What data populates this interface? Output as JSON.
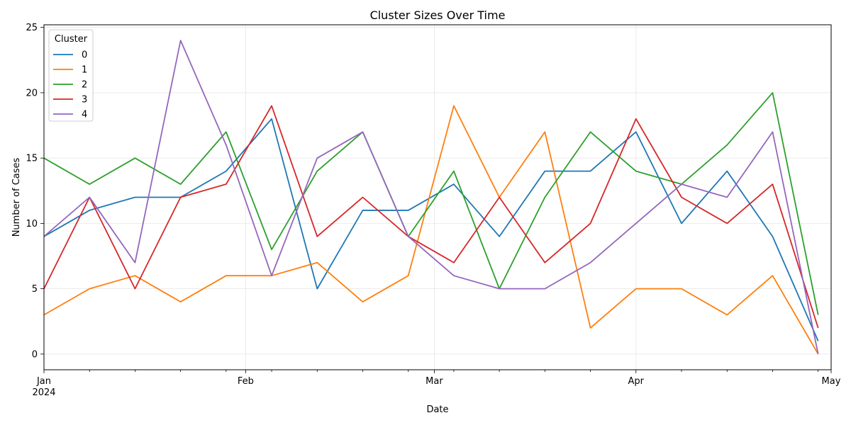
{
  "chart_data": {
    "type": "line",
    "title": "Cluster Sizes Over Time",
    "xlabel": "Date",
    "ylabel": "Number of Cases",
    "x": [
      "2024-01-01",
      "2024-01-08",
      "2024-01-15",
      "2024-01-22",
      "2024-01-29",
      "2024-02-05",
      "2024-02-12",
      "2024-02-19",
      "2024-02-26",
      "2024-03-04",
      "2024-03-11",
      "2024-03-18",
      "2024-03-25",
      "2024-04-01",
      "2024-04-08",
      "2024-04-15",
      "2024-04-22",
      "2024-04-29"
    ],
    "xlim": [
      "2024-01-01",
      "2024-05-01"
    ],
    "x_major_ticks": [
      {
        "date": "2024-01-01",
        "label": "Jan",
        "sublabel": "2024"
      },
      {
        "date": "2024-02-01",
        "label": "Feb",
        "sublabel": ""
      },
      {
        "date": "2024-03-01",
        "label": "Mar",
        "sublabel": ""
      },
      {
        "date": "2024-04-01",
        "label": "Apr",
        "sublabel": ""
      },
      {
        "date": "2024-05-01",
        "label": "May",
        "sublabel": ""
      }
    ],
    "ylim": [
      -1.2,
      25.2
    ],
    "y_ticks": [
      0,
      5,
      10,
      15,
      20,
      25
    ],
    "grid": true,
    "legend": {
      "title": "Cluster",
      "position": "top-left"
    },
    "series": [
      {
        "name": "0",
        "color": "#1f77b4",
        "values": [
          9,
          11,
          12,
          12,
          14,
          18,
          5,
          11,
          11,
          13,
          9,
          14,
          14,
          17,
          10,
          14,
          9,
          1
        ]
      },
      {
        "name": "1",
        "color": "#ff7f0e",
        "values": [
          3,
          5,
          6,
          4,
          6,
          6,
          7,
          4,
          6,
          19,
          12,
          17,
          2,
          5,
          5,
          3,
          6,
          0
        ]
      },
      {
        "name": "2",
        "color": "#2ca02c",
        "values": [
          15,
          13,
          15,
          13,
          17,
          8,
          14,
          17,
          9,
          14,
          5,
          12,
          17,
          14,
          13,
          16,
          20,
          3
        ]
      },
      {
        "name": "3",
        "color": "#d62728",
        "values": [
          5,
          12,
          5,
          12,
          13,
          19,
          9,
          12,
          9,
          7,
          12,
          7,
          10,
          18,
          12,
          10,
          13,
          2
        ]
      },
      {
        "name": "4",
        "color": "#9467bd",
        "values": [
          9,
          12,
          7,
          24,
          16,
          6,
          15,
          17,
          9,
          6,
          5,
          5,
          7,
          10,
          13,
          12,
          17,
          0
        ]
      }
    ]
  }
}
